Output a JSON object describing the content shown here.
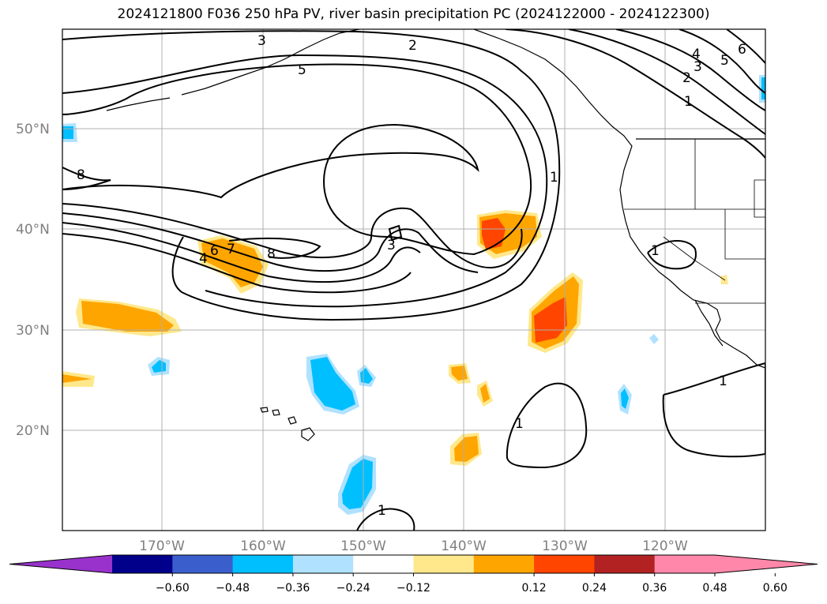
{
  "title": "2024121800 F036 250 hPa PV, river basin precipitation PC (2024122000 - 2024122300)",
  "latitudes": [
    "50°N",
    "40°N",
    "30°N",
    "20°N"
  ],
  "longitudes": [
    "170°W",
    "160°W",
    "150°W",
    "140°W",
    "130°W",
    "120°W"
  ],
  "contour_labels": [
    "3",
    "2",
    "5",
    "4",
    "3",
    "2",
    "1",
    "6",
    "5",
    "8",
    "1",
    "3",
    "6",
    "4",
    "7",
    "8",
    "1",
    "1",
    "1",
    "1"
  ],
  "colorbar": {
    "colors": [
      "#9932cc",
      "#00008b",
      "#3a5fcd",
      "#00bfff",
      "#b0e2ff",
      "#ffffff",
      "#ffe88c",
      "#ffa500",
      "#ff4500",
      "#b22222",
      "#ff88aa",
      "#ff88aa"
    ],
    "extend": "both",
    "ticks": [
      "−0.60",
      "−0.48",
      "−0.36",
      "−0.24",
      "−0.12",
      "0.12",
      "0.24",
      "0.36",
      "0.48",
      "0.60"
    ]
  },
  "colors": {
    "negative_light": "#b0e2ff",
    "negative_mid": "#00bfff",
    "positive_light": "#ffe88c",
    "positive_mid": "#ffa500",
    "positive_high": "#ff4500",
    "contour": "#000000",
    "grid": "#b0b0b0",
    "tick_text": "#808080"
  }
}
